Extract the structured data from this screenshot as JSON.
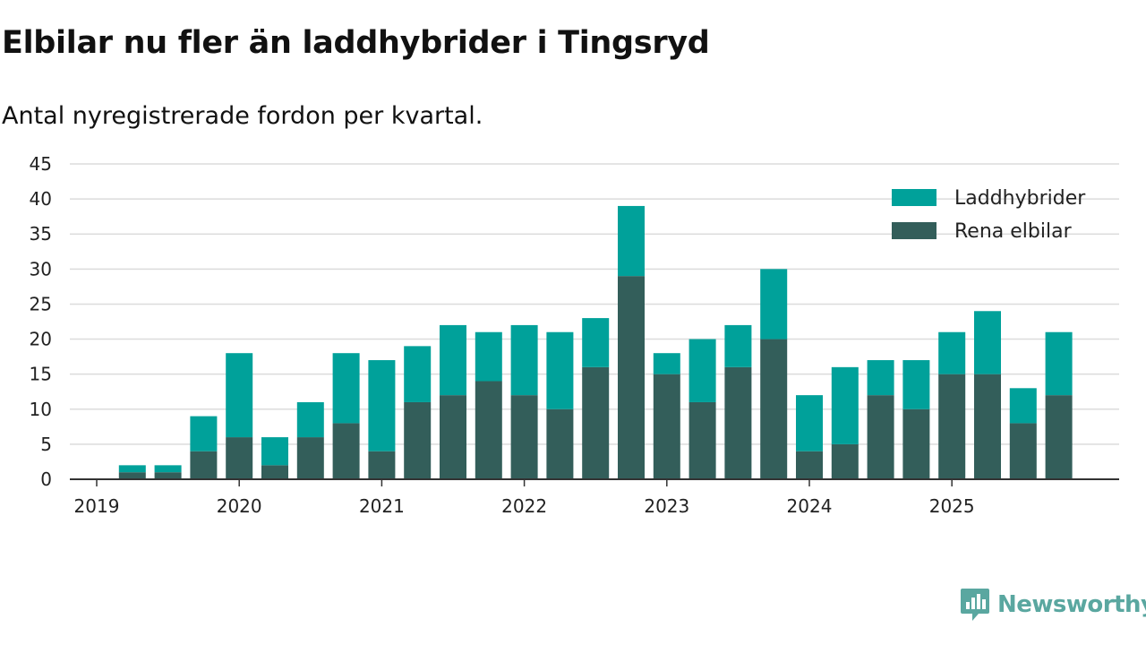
{
  "title": "Elbilar nu fler än laddhybrider i Tingsryd",
  "subtitle": "Antal nyregistrerade fordon per kvartal.",
  "brand": {
    "name": "Newsworthy",
    "icon": "newsworthy-logo-icon",
    "color": "#5aa7a0"
  },
  "chart_data": {
    "type": "bar",
    "stacked": true,
    "title": "Elbilar nu fler än laddhybrider i Tingsryd",
    "subtitle": "Antal nyregistrerade fordon per kvartal.",
    "xlabel": "",
    "ylabel": "",
    "ylim": [
      0,
      45
    ],
    "yticks": [
      0,
      5,
      10,
      15,
      20,
      25,
      30,
      35,
      40,
      45
    ],
    "grid": true,
    "legend_position": "top-right",
    "year_labels": [
      "2019",
      "2020",
      "2021",
      "2022",
      "2023",
      "2024",
      "2025"
    ],
    "categories": [
      "2019 Q1",
      "2019 Q2",
      "2019 Q3",
      "2019 Q4",
      "2020 Q1",
      "2020 Q2",
      "2020 Q3",
      "2020 Q4",
      "2021 Q1",
      "2021 Q2",
      "2021 Q3",
      "2021 Q4",
      "2022 Q1",
      "2022 Q2",
      "2022 Q3",
      "2022 Q4",
      "2023 Q1",
      "2023 Q2",
      "2023 Q3",
      "2023 Q4",
      "2024 Q1",
      "2024 Q2",
      "2024 Q3",
      "2024 Q4",
      "2025 Q1",
      "2025 Q2",
      "2025 Q3",
      "2025 Q4"
    ],
    "series": [
      {
        "name": "Rena elbilar",
        "color": "#335e5a",
        "values": [
          0,
          1,
          1,
          4,
          6,
          2,
          6,
          8,
          4,
          11,
          12,
          14,
          12,
          10,
          16,
          29,
          15,
          11,
          16,
          20,
          4,
          5,
          12,
          10,
          15,
          15,
          8,
          12
        ]
      },
      {
        "name": "Laddhybrider",
        "color": "#00a19a",
        "values": [
          0,
          1,
          1,
          5,
          12,
          4,
          5,
          10,
          13,
          8,
          10,
          7,
          10,
          11,
          7,
          10,
          3,
          9,
          6,
          10,
          8,
          11,
          5,
          7,
          6,
          9,
          5,
          9
        ]
      }
    ],
    "legend_order": [
      "Laddhybrider",
      "Rena elbilar"
    ]
  }
}
